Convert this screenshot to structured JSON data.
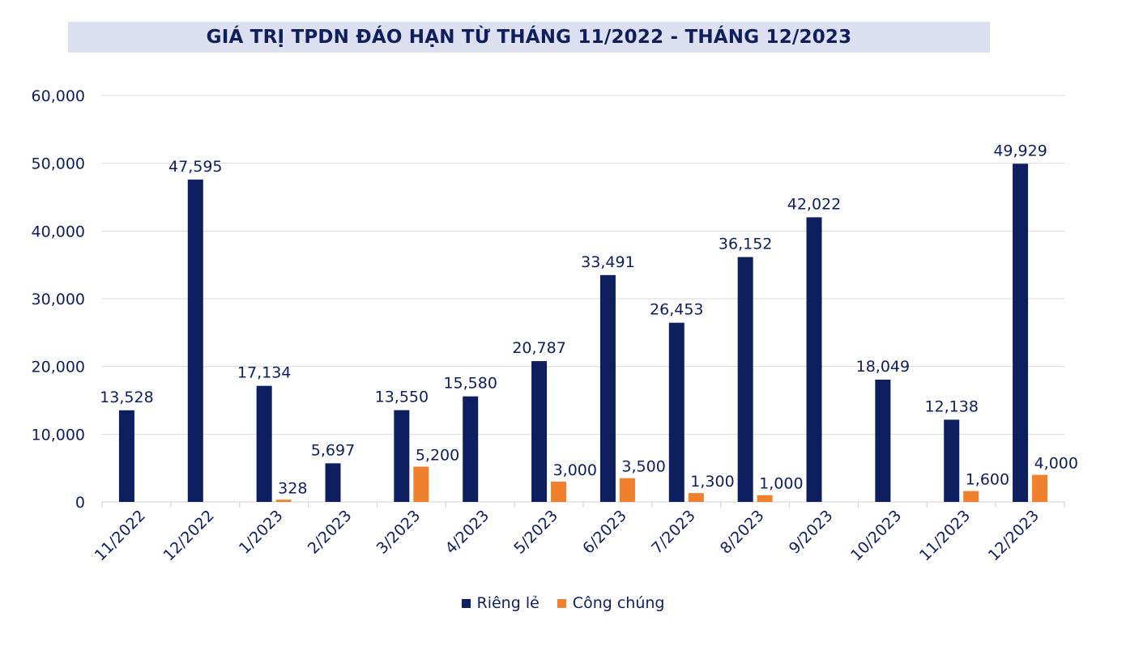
{
  "colors": {
    "rieng_le": "#0d1f5e",
    "cong_chung": "#f07f2e",
    "text": "#0e1f5c",
    "grid": "#d9d9d9",
    "title_bg": "#dde0f0"
  },
  "chart_data": {
    "type": "bar",
    "title": "GIÁ TRỊ TPDN ĐÁO HẠN TỪ THÁNG 11/2022 - THÁNG 12/2023",
    "xlabel": "",
    "ylabel": "",
    "ylim": [
      0,
      60000
    ],
    "yticks": [
      0,
      10000,
      20000,
      30000,
      40000,
      50000,
      60000
    ],
    "ytick_labels": [
      "0",
      "10,000",
      "20,000",
      "30,000",
      "40,000",
      "50,000",
      "60,000"
    ],
    "grid": true,
    "legend_position": "bottom",
    "categories": [
      "11/2022",
      "12/2022",
      "1/2023",
      "2/2023",
      "3/2023",
      "4/2023",
      "5/2023",
      "6/2023",
      "7/2023",
      "8/2023",
      "9/2023",
      "10/2023",
      "11/2023",
      "12/2023"
    ],
    "series": [
      {
        "name": "Riêng lẻ",
        "values": [
          13528,
          47595,
          17134,
          5697,
          13550,
          15580,
          20787,
          33491,
          26453,
          36152,
          42022,
          18049,
          12138,
          49929
        ],
        "labels": [
          "13,528",
          "47,595",
          "17,134",
          "5,697",
          "13,550",
          "15,580",
          "20,787",
          "33,491",
          "26,453",
          "36,152",
          "42,022",
          "18,049",
          "12,138",
          "49,929"
        ]
      },
      {
        "name": "Công chúng",
        "values": [
          null,
          null,
          328,
          null,
          5200,
          null,
          3000,
          3500,
          1300,
          1000,
          null,
          null,
          1600,
          4000
        ],
        "labels": [
          null,
          null,
          "328",
          null,
          "5,200",
          null,
          "3,000",
          "3,500",
          "1,300",
          "1,000",
          null,
          null,
          "1,600",
          "4,000"
        ]
      }
    ]
  }
}
